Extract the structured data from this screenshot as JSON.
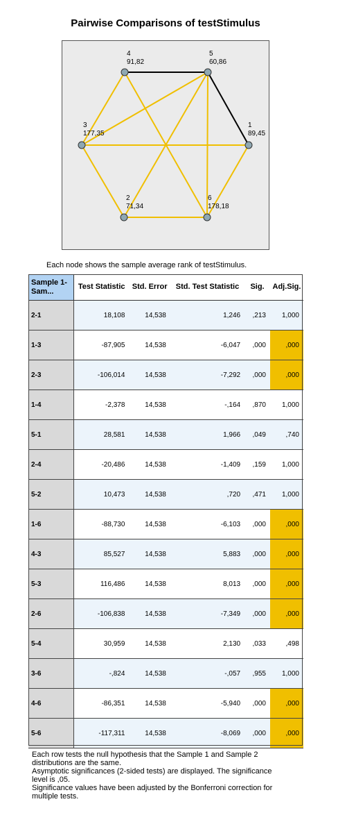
{
  "title": "Pairwise Comparisons of testStimulus",
  "graph": {
    "nodes": [
      {
        "id": "4",
        "rank": "91,82"
      },
      {
        "id": "5",
        "rank": "60,86"
      },
      {
        "id": "3",
        "rank": "177,35"
      },
      {
        "id": "1",
        "rank": "89,45"
      },
      {
        "id": "2",
        "rank": "71,34"
      },
      {
        "id": "6",
        "rank": "178,18"
      }
    ],
    "colors": {
      "significant": "#f0bf00",
      "not_significant": "#000000",
      "node_fill": "#8fa8b2"
    }
  },
  "caption": "Each node shows the sample average rank of testStimulus.",
  "table": {
    "headers": [
      "Sample 1-Sam...",
      "Test Statistic",
      "Std. Error",
      "Std. Test Statistic",
      "Sig.",
      "Adj.Sig."
    ],
    "rows": [
      {
        "pair": "2-1",
        "ts": "18,108",
        "se": "14,538",
        "sts": "1,246",
        "sig": ",213",
        "adj": "1,000"
      },
      {
        "pair": "1-3",
        "ts": "-87,905",
        "se": "14,538",
        "sts": "-6,047",
        "sig": ",000",
        "adj": ",000"
      },
      {
        "pair": "2-3",
        "ts": "-106,014",
        "se": "14,538",
        "sts": "-7,292",
        "sig": ",000",
        "adj": ",000"
      },
      {
        "pair": "1-4",
        "ts": "-2,378",
        "se": "14,538",
        "sts": "-,164",
        "sig": ",870",
        "adj": "1,000"
      },
      {
        "pair": "5-1",
        "ts": "28,581",
        "se": "14,538",
        "sts": "1,966",
        "sig": ",049",
        "adj": ",740"
      },
      {
        "pair": "2-4",
        "ts": "-20,486",
        "se": "14,538",
        "sts": "-1,409",
        "sig": ",159",
        "adj": "1,000"
      },
      {
        "pair": "5-2",
        "ts": "10,473",
        "se": "14,538",
        "sts": ",720",
        "sig": ",471",
        "adj": "1,000"
      },
      {
        "pair": "1-6",
        "ts": "-88,730",
        "se": "14,538",
        "sts": "-6,103",
        "sig": ",000",
        "adj": ",000"
      },
      {
        "pair": "4-3",
        "ts": "85,527",
        "se": "14,538",
        "sts": "5,883",
        "sig": ",000",
        "adj": ",000"
      },
      {
        "pair": "5-3",
        "ts": "116,486",
        "se": "14,538",
        "sts": "8,013",
        "sig": ",000",
        "adj": ",000"
      },
      {
        "pair": "2-6",
        "ts": "-106,838",
        "se": "14,538",
        "sts": "-7,349",
        "sig": ",000",
        "adj": ",000"
      },
      {
        "pair": "5-4",
        "ts": "30,959",
        "se": "14,538",
        "sts": "2,130",
        "sig": ",033",
        "adj": ",498"
      },
      {
        "pair": "3-6",
        "ts": "-,824",
        "se": "14,538",
        "sts": "-,057",
        "sig": ",955",
        "adj": "1,000"
      },
      {
        "pair": "4-6",
        "ts": "-86,351",
        "se": "14,538",
        "sts": "-5,940",
        "sig": ",000",
        "adj": ",000"
      },
      {
        "pair": "5-6",
        "ts": "-117,311",
        "se": "14,538",
        "sts": "-8,069",
        "sig": ",000",
        "adj": ",000"
      }
    ],
    "highlight_color": "#f0bf00"
  },
  "footnotes": [
    "Each row tests the null hypothesis that the Sample 1 and Sample 2 distributions are the same.",
    "Asymptotic significances (2-sided tests) are displayed. The significance level is ,05.",
    "Significance values have been adjusted by the Bonferroni correction for multiple tests."
  ]
}
